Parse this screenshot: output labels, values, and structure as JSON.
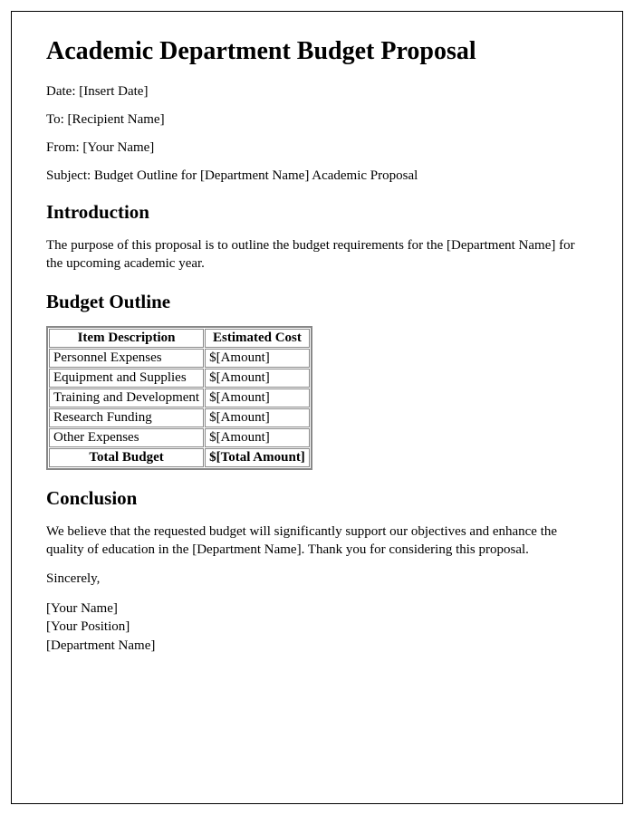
{
  "title": "Academic Department Budget Proposal",
  "meta": {
    "date": "Date: [Insert Date]",
    "to": "To: [Recipient Name]",
    "from": "From: [Your Name]",
    "subject": "Subject: Budget Outline for [Department Name] Academic Proposal"
  },
  "sections": {
    "intro": {
      "heading": "Introduction",
      "text": "The purpose of this proposal is to outline the budget requirements for the [Department Name] for the upcoming academic year."
    },
    "budget": {
      "heading": "Budget Outline",
      "columns": [
        "Item Description",
        "Estimated Cost"
      ],
      "rows": [
        {
          "desc": "Personnel Expenses",
          "cost": "$[Amount]"
        },
        {
          "desc": "Equipment and Supplies",
          "cost": "$[Amount]"
        },
        {
          "desc": "Training and Development",
          "cost": "$[Amount]"
        },
        {
          "desc": "Research Funding",
          "cost": "$[Amount]"
        },
        {
          "desc": "Other Expenses",
          "cost": "$[Amount]"
        }
      ],
      "total": {
        "label": "Total Budget",
        "value": "$[Total Amount]"
      }
    },
    "conclusion": {
      "heading": "Conclusion",
      "text": "We believe that the requested budget will significantly support our objectives and enhance the quality of education in the [Department Name]. Thank you for considering this proposal."
    }
  },
  "closing": "Sincerely,",
  "signature": {
    "name": "[Your Name]",
    "position": "[Your Position]",
    "department": "[Department Name]"
  },
  "styling": {
    "page_border_color": "#000000",
    "table_border_color": "#888888",
    "text_color": "#000000",
    "background_color": "#ffffff",
    "h1_fontsize": 28,
    "h2_fontsize": 21,
    "body_fontsize": 15,
    "font_family": "Times New Roman"
  }
}
